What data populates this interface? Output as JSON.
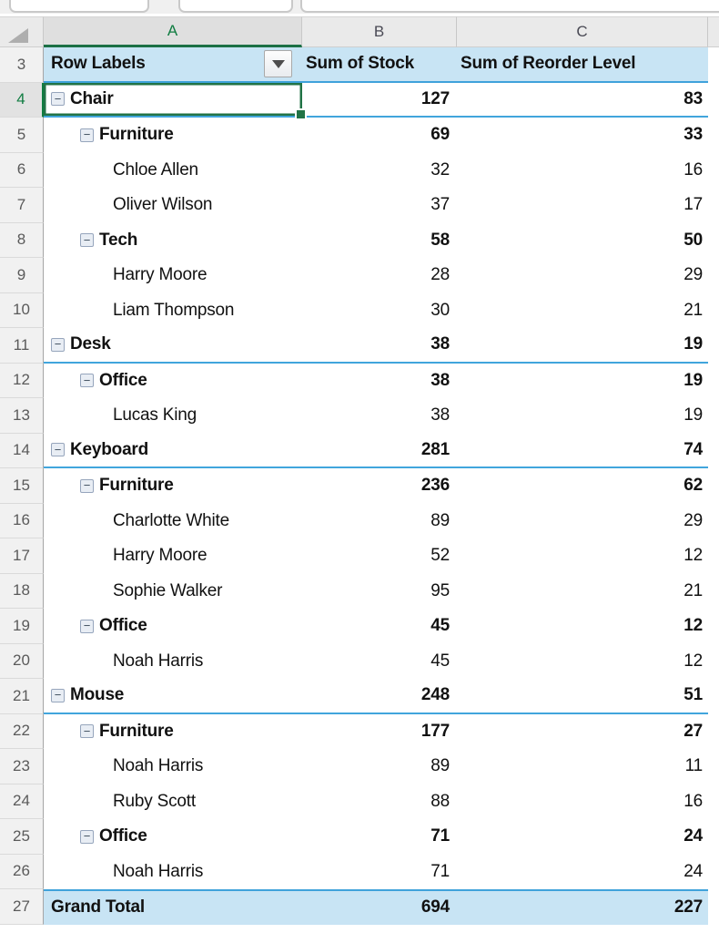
{
  "app": {
    "description": "Excel worksheet showing a PivotTable",
    "selected_cell": "A4",
    "selected_cell_value": "Chair"
  },
  "colors": {
    "accent_green": "#217346",
    "header_green": "#107c41",
    "pivot_fill_blue": "#c8e4f4",
    "pivot_border_blue": "#3fa2db",
    "column_header_gray": "#eaeaea"
  },
  "icons": {
    "collapse_glyph": "−",
    "collapse_name": "collapse-minus-icon",
    "filter_name": "filter-dropdown-icon",
    "select_all_name": "select-all-triangle-icon"
  },
  "column_headers": {
    "a": "A",
    "b": "B",
    "c": "C"
  },
  "pivot": {
    "header": {
      "n": "3",
      "row_labels": "Row Labels",
      "col1": "Sum of Stock",
      "col2": "Sum of Reorder Level"
    },
    "rows": [
      {
        "n": "4",
        "label": "Chair",
        "level": 1,
        "stock": "127",
        "reorder": "83",
        "collapse": true,
        "bold": true,
        "group_end": true,
        "selected": true
      },
      {
        "n": "5",
        "label": "Furniture",
        "level": 2,
        "stock": "69",
        "reorder": "33",
        "collapse": true,
        "bold": true
      },
      {
        "n": "6",
        "label": "Chloe Allen",
        "level": 3,
        "stock": "32",
        "reorder": "16"
      },
      {
        "n": "7",
        "label": "Oliver Wilson",
        "level": 3,
        "stock": "37",
        "reorder": "17"
      },
      {
        "n": "8",
        "label": "Tech",
        "level": 2,
        "stock": "58",
        "reorder": "50",
        "collapse": true,
        "bold": true
      },
      {
        "n": "9",
        "label": "Harry Moore",
        "level": 3,
        "stock": "28",
        "reorder": "29"
      },
      {
        "n": "10",
        "label": "Liam Thompson",
        "level": 3,
        "stock": "30",
        "reorder": "21"
      },
      {
        "n": "11",
        "label": "Desk",
        "level": 1,
        "stock": "38",
        "reorder": "19",
        "collapse": true,
        "bold": true,
        "group_end": true
      },
      {
        "n": "12",
        "label": "Office",
        "level": 2,
        "stock": "38",
        "reorder": "19",
        "collapse": true,
        "bold": true
      },
      {
        "n": "13",
        "label": "Lucas King",
        "level": 3,
        "stock": "38",
        "reorder": "19"
      },
      {
        "n": "14",
        "label": "Keyboard",
        "level": 1,
        "stock": "281",
        "reorder": "74",
        "collapse": true,
        "bold": true,
        "group_end": true
      },
      {
        "n": "15",
        "label": "Furniture",
        "level": 2,
        "stock": "236",
        "reorder": "62",
        "collapse": true,
        "bold": true
      },
      {
        "n": "16",
        "label": "Charlotte White",
        "level": 3,
        "stock": "89",
        "reorder": "29"
      },
      {
        "n": "17",
        "label": "Harry Moore",
        "level": 3,
        "stock": "52",
        "reorder": "12"
      },
      {
        "n": "18",
        "label": "Sophie Walker",
        "level": 3,
        "stock": "95",
        "reorder": "21"
      },
      {
        "n": "19",
        "label": "Office",
        "level": 2,
        "stock": "45",
        "reorder": "12",
        "collapse": true,
        "bold": true
      },
      {
        "n": "20",
        "label": "Noah Harris",
        "level": 3,
        "stock": "45",
        "reorder": "12"
      },
      {
        "n": "21",
        "label": "Mouse",
        "level": 1,
        "stock": "248",
        "reorder": "51",
        "collapse": true,
        "bold": true,
        "group_end": true
      },
      {
        "n": "22",
        "label": "Furniture",
        "level": 2,
        "stock": "177",
        "reorder": "27",
        "collapse": true,
        "bold": true
      },
      {
        "n": "23",
        "label": "Noah Harris",
        "level": 3,
        "stock": "89",
        "reorder": "11"
      },
      {
        "n": "24",
        "label": "Ruby Scott",
        "level": 3,
        "stock": "88",
        "reorder": "16"
      },
      {
        "n": "25",
        "label": "Office",
        "level": 2,
        "stock": "71",
        "reorder": "24",
        "collapse": true,
        "bold": true
      },
      {
        "n": "26",
        "label": "Noah Harris",
        "level": 3,
        "stock": "71",
        "reorder": "24"
      },
      {
        "n": "27",
        "label": "Grand Total",
        "level": 0,
        "stock": "694",
        "reorder": "227",
        "bold": true,
        "total": true
      }
    ]
  }
}
